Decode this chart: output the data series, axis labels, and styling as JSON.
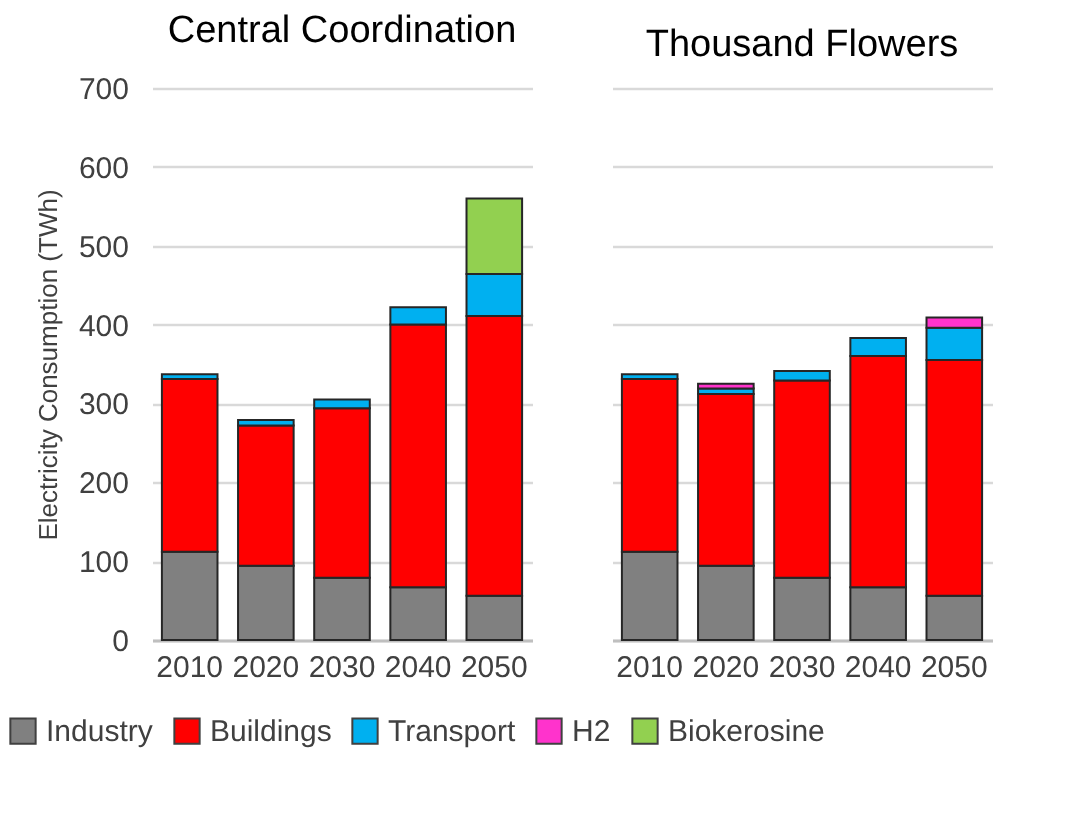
{
  "chart_data": [
    {
      "type": "bar",
      "title": "Central Coordination",
      "ylabel": "Electricity Consumption (TWh)",
      "categories": [
        "2010",
        "2020",
        "2030",
        "2040",
        "2050"
      ],
      "stacked": true,
      "ylim": [
        0,
        700
      ],
      "yticks": [
        0,
        100,
        200,
        300,
        400,
        500,
        600,
        700
      ],
      "grid": "y",
      "legend": "bottom",
      "series": [
        {
          "name": "Industry",
          "color": "#808080",
          "values": [
            112,
            94,
            79,
            67,
            56
          ]
        },
        {
          "name": "Buildings",
          "color": "#ff0000",
          "values": [
            219,
            178,
            215,
            333,
            355
          ]
        },
        {
          "name": "Transport",
          "color": "#00b0f0",
          "values": [
            6,
            7,
            11,
            22,
            53
          ]
        },
        {
          "name": "H2",
          "color": "#ff33cc",
          "values": [
            null,
            null,
            null,
            null,
            null
          ]
        },
        {
          "name": "Biokerosine",
          "color": "#92d050",
          "values": [
            null,
            null,
            null,
            null,
            96
          ]
        }
      ]
    },
    {
      "type": "bar",
      "title": "Thousand Flowers",
      "categories": [
        "2010",
        "2020",
        "2030",
        "2040",
        "2050"
      ],
      "stacked": true,
      "ylim": [
        0,
        700
      ],
      "yticks": [
        0,
        100,
        200,
        300,
        400,
        500,
        600,
        700
      ],
      "grid": "y",
      "tick_labels": "x",
      "series": [
        {
          "color": "#808080",
          "values": [
            112,
            94,
            79,
            67,
            56
          ]
        },
        {
          "color": "#ff0000",
          "values": [
            219,
            218,
            250,
            293,
            299
          ]
        },
        {
          "color": "#00b0f0",
          "values": [
            6,
            7,
            12,
            23,
            41
          ]
        },
        {
          "color": "#ff33cc",
          "values": [
            null,
            6,
            null,
            null,
            13
          ]
        }
      ]
    }
  ]
}
